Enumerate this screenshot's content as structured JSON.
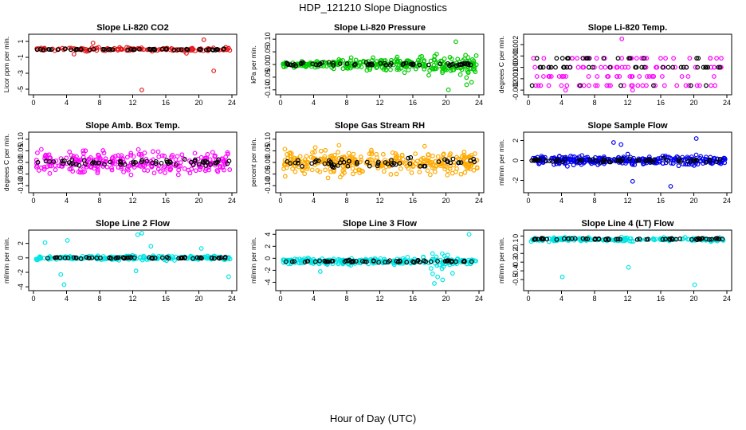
{
  "figure": {
    "title": "HDP_121210  Slope Diagnostics",
    "xlabel": "Hour of Day (UTC)"
  },
  "chart_data": [
    {
      "type": "scatter",
      "title": "Slope Li-820 CO2",
      "ylabel": "Licor ppm per min.",
      "xlim": [
        0,
        24
      ],
      "ylim": [
        -5.4,
        1.6
      ],
      "xticks": [
        0,
        4,
        8,
        12,
        16,
        20,
        24
      ],
      "yticks": [
        1,
        -1,
        -3,
        -5
      ],
      "ytick_labels": [
        "1",
        "-1",
        "-3",
        "-5"
      ],
      "color": "#e31a1c",
      "center": 0.0,
      "spread": 0.22,
      "n": 140,
      "outliers": [
        [
          13.1,
          -5.1
        ],
        [
          21.8,
          -2.7
        ],
        [
          20.6,
          1.2
        ],
        [
          7.2,
          0.8
        ],
        [
          4.9,
          -0.6
        ],
        [
          18.5,
          -0.5
        ]
      ]
    },
    {
      "type": "scatter",
      "title": "Slope Li-820 Pressure",
      "ylabel": "kPa per min.",
      "xlim": [
        0,
        24
      ],
      "ylim": [
        -0.11,
        0.11
      ],
      "xticks": [
        0,
        4,
        8,
        12,
        16,
        20,
        24
      ],
      "yticks": [
        0.1,
        0.05,
        0,
        -0.05,
        -0.1
      ],
      "ytick_labels": [
        "0.10",
        "0.05",
        "0.00",
        "-0.05",
        "-0.10"
      ],
      "color": "#00cc00",
      "center": 0.0,
      "spread": 0.02,
      "n": 300,
      "outliers": [
        [
          20.3,
          -0.1
        ],
        [
          23.1,
          -0.07
        ],
        [
          22.5,
          -0.08
        ],
        [
          21.2,
          0.09
        ]
      ]
    },
    {
      "type": "scatter",
      "title": "Slope Li-820 Temp.",
      "ylabel": "degrees C per min.",
      "xlim": [
        0,
        24
      ],
      "ylim": [
        -0.0022,
        0.0027
      ],
      "xticks": [
        0,
        4,
        8,
        12,
        16,
        20,
        24
      ],
      "yticks": [
        0.002,
        0.001,
        0,
        -0.001,
        -0.002
      ],
      "ytick_labels": [
        "0.002",
        "0.001",
        "0.000",
        "-0.001",
        "-0.002"
      ],
      "color": "#ff00ff",
      "levels": [
        0.0008,
        0.0,
        -0.0008,
        -0.0016
      ],
      "n": 120,
      "outliers": [
        [
          11.3,
          0.0025
        ],
        [
          12.6,
          -0.002
        ],
        [
          4.5,
          -0.002
        ]
      ]
    },
    {
      "type": "scatter",
      "title": "Slope Amb. Box Temp.",
      "ylabel": "degrees C per min.",
      "xlim": [
        0,
        24
      ],
      "ylim": [
        -0.12,
        0.12
      ],
      "xticks": [
        0,
        4,
        8,
        12,
        16,
        20,
        24
      ],
      "yticks": [
        0.1,
        0.05,
        0,
        -0.05,
        -0.1
      ],
      "ytick_labels": [
        "0.10",
        "0.05",
        "0.00",
        "-0.05",
        "-0.10"
      ],
      "color": "#ff00ff",
      "center": 0.0,
      "spread": 0.045,
      "n": 260,
      "outliers": []
    },
    {
      "type": "scatter",
      "title": "Slope Gas Stream RH",
      "ylabel": "percent per min.",
      "xlim": [
        0,
        24
      ],
      "ylim": [
        -0.12,
        0.12
      ],
      "xticks": [
        0,
        4,
        8,
        12,
        16,
        20,
        24
      ],
      "yticks": [
        0.1,
        0.05,
        0,
        -0.05,
        -0.1
      ],
      "ytick_labels": [
        "0.10",
        "0.05",
        "0.00",
        "-0.05",
        "-0.10"
      ],
      "color": "#ffaa00",
      "center": 0.0,
      "spread": 0.05,
      "n": 320,
      "outliers": []
    },
    {
      "type": "scatter",
      "title": "Slope Sample Flow",
      "ylabel": "ml/min per min.",
      "xlim": [
        0,
        24
      ],
      "ylim": [
        -3,
        2.6
      ],
      "xticks": [
        0,
        4,
        8,
        12,
        16,
        20,
        24
      ],
      "yticks": [
        2,
        0,
        -2
      ],
      "ytick_labels": [
        "2",
        "0",
        "-2"
      ],
      "color": "#0000ee",
      "center": 0.0,
      "spread": 0.45,
      "n": 300,
      "outliers": [
        [
          17.2,
          -2.6
        ],
        [
          20.3,
          2.2
        ],
        [
          10.3,
          1.8
        ],
        [
          11.2,
          1.6
        ],
        [
          12.6,
          -2.1
        ]
      ]
    },
    {
      "type": "scatter",
      "title": "Slope Line 2 Flow",
      "ylabel": "ml/min per min.",
      "xlim": [
        0,
        24
      ],
      "ylim": [
        -4.2,
        3.5
      ],
      "xticks": [
        0,
        4,
        8,
        12,
        16,
        20,
        24
      ],
      "yticks": [
        2,
        0,
        -2,
        -4
      ],
      "ytick_labels": [
        "2",
        "0",
        "-2",
        "-4"
      ],
      "color": "#00e5e5",
      "center": 0.0,
      "spread": 0.3,
      "n": 200,
      "outliers": [
        [
          3.7,
          -3.7
        ],
        [
          3.3,
          -2.3
        ],
        [
          12.6,
          3.2
        ],
        [
          13.1,
          3.4
        ],
        [
          12.4,
          -1.8
        ],
        [
          4.1,
          2.4
        ],
        [
          23.6,
          -2.6
        ],
        [
          20.3,
          1.3
        ],
        [
          14.2,
          1.6
        ],
        [
          1.4,
          2.1
        ]
      ]
    },
    {
      "type": "scatter",
      "title": "Slope Line 3 Flow",
      "ylabel": "ml/min per min.",
      "xlim": [
        0,
        24
      ],
      "ylim": [
        -5,
        4.3
      ],
      "xticks": [
        0,
        4,
        8,
        12,
        16,
        20,
        24
      ],
      "yticks": [
        4,
        2,
        0,
        -2,
        -4
      ],
      "ytick_labels": [
        "4",
        "2",
        "0",
        "-2",
        "-4"
      ],
      "color": "#00e5e5",
      "center": -0.5,
      "spread": 0.5,
      "n": 260,
      "outliers": [
        [
          18.6,
          -4.2
        ],
        [
          19.0,
          -3.1
        ],
        [
          18.4,
          -2.6
        ],
        [
          19.6,
          -3.6
        ],
        [
          22.8,
          4.0
        ],
        [
          4.8,
          -2.2
        ],
        [
          20.8,
          -2.5
        ]
      ]
    },
    {
      "type": "scatter",
      "title": "Slope Line 4 (LT) Flow",
      "ylabel": "ml/min per min.",
      "xlim": [
        0,
        24
      ],
      "ylim": [
        -0.6,
        0.04
      ],
      "xticks": [
        0,
        4,
        8,
        12,
        16,
        20,
        24
      ],
      "yticks": [
        0,
        -0.1,
        -0.2,
        -0.3,
        -0.4,
        -0.5
      ],
      "ytick_labels": [
        "0",
        "-0.1",
        "-0.2",
        "-0.3",
        "-0.4",
        "-0.5"
      ],
      "color": "#00e5e5",
      "center": -0.04,
      "spread": 0.022,
      "n": 200,
      "outliers": [
        [
          4.1,
          -0.47
        ],
        [
          12.1,
          -0.36
        ],
        [
          20.1,
          -0.56
        ]
      ]
    }
  ]
}
